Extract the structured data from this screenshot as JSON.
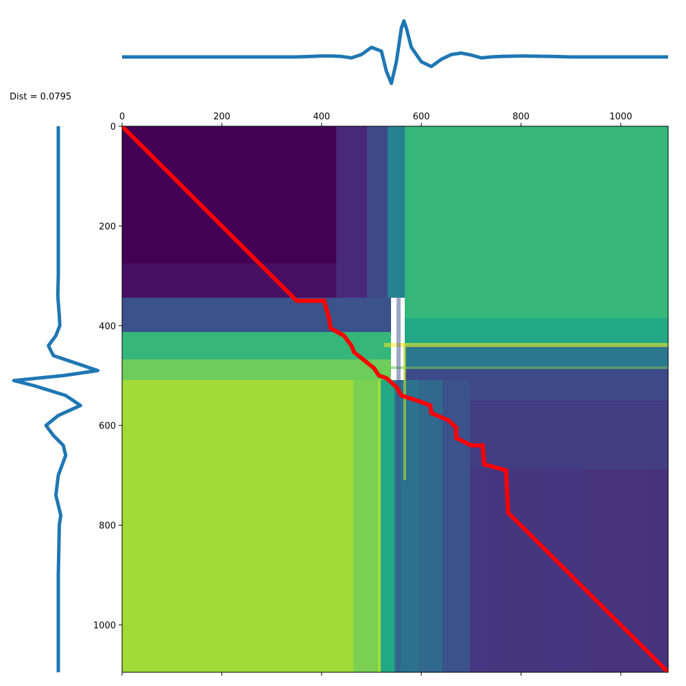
{
  "annotation": {
    "distance_label": "Dist = 0.0795"
  },
  "chart_data": [
    {
      "type": "line",
      "role": "top-signal",
      "title": "",
      "xlabel": "",
      "ylabel": "",
      "color": "#1f77b4",
      "axis_visible": false,
      "x": [
        0,
        350,
        380,
        400,
        420,
        440,
        460,
        480,
        500,
        520,
        530,
        540,
        550,
        560,
        565,
        570,
        580,
        590,
        600,
        620,
        640,
        660,
        680,
        700,
        720,
        740,
        760,
        800,
        860,
        900,
        1000,
        1095
      ],
      "y": [
        0,
        0,
        0.01,
        0.02,
        0.02,
        0.01,
        -0.02,
        0.05,
        0.2,
        0.12,
        -0.3,
        -0.55,
        -0.1,
        0.6,
        0.75,
        0.6,
        0.2,
        0.05,
        -0.1,
        -0.2,
        -0.05,
        0.05,
        0.08,
        0.04,
        -0.02,
        0.0,
        0.01,
        0.02,
        0.01,
        0,
        0,
        0
      ]
    },
    {
      "type": "line",
      "role": "left-signal",
      "title": "",
      "xlabel": "",
      "ylabel": "",
      "color": "#1f77b4",
      "axis_visible": false,
      "orientation": "vertical",
      "index": [
        0,
        300,
        340,
        380,
        400,
        420,
        440,
        460,
        480,
        490,
        500,
        510,
        520,
        540,
        560,
        580,
        600,
        620,
        640,
        660,
        700,
        740,
        780,
        800,
        900,
        1095
      ],
      "values": [
        0,
        0,
        -0.01,
        0.02,
        0.03,
        -0.05,
        -0.2,
        -0.1,
        0.5,
        0.8,
        0.1,
        -0.9,
        -0.5,
        0.15,
        0.45,
        0.0,
        -0.25,
        -0.1,
        0.1,
        0.15,
        0.0,
        -0.05,
        0.05,
        0.02,
        0,
        0
      ]
    },
    {
      "type": "heatmap",
      "role": "cost-matrix",
      "title": "",
      "xlabel": "",
      "ylabel": "",
      "colormap": "viridis",
      "xlim": [
        0,
        1095
      ],
      "ylim": [
        1095,
        0
      ],
      "x_ticks": [
        "0",
        "200",
        "400",
        "600",
        "800",
        "1000"
      ],
      "y_ticks": [
        "0",
        "200",
        "400",
        "600",
        "800",
        "1000"
      ],
      "tick_values": [
        0,
        200,
        400,
        600,
        800,
        1000
      ],
      "path_color": "#ff0000",
      "warping_path": [
        [
          0,
          0
        ],
        [
          350,
          350
        ],
        [
          405,
          350
        ],
        [
          415,
          385
        ],
        [
          418,
          405
        ],
        [
          445,
          420
        ],
        [
          460,
          440
        ],
        [
          465,
          453
        ],
        [
          505,
          485
        ],
        [
          515,
          500
        ],
        [
          530,
          505
        ],
        [
          550,
          523
        ],
        [
          560,
          540
        ],
        [
          600,
          553
        ],
        [
          618,
          560
        ],
        [
          620,
          575
        ],
        [
          655,
          590
        ],
        [
          670,
          605
        ],
        [
          670,
          625
        ],
        [
          700,
          640
        ],
        [
          723,
          640
        ],
        [
          726,
          678
        ],
        [
          770,
          690
        ],
        [
          774,
          775
        ],
        [
          1095,
          1095
        ]
      ]
    }
  ]
}
